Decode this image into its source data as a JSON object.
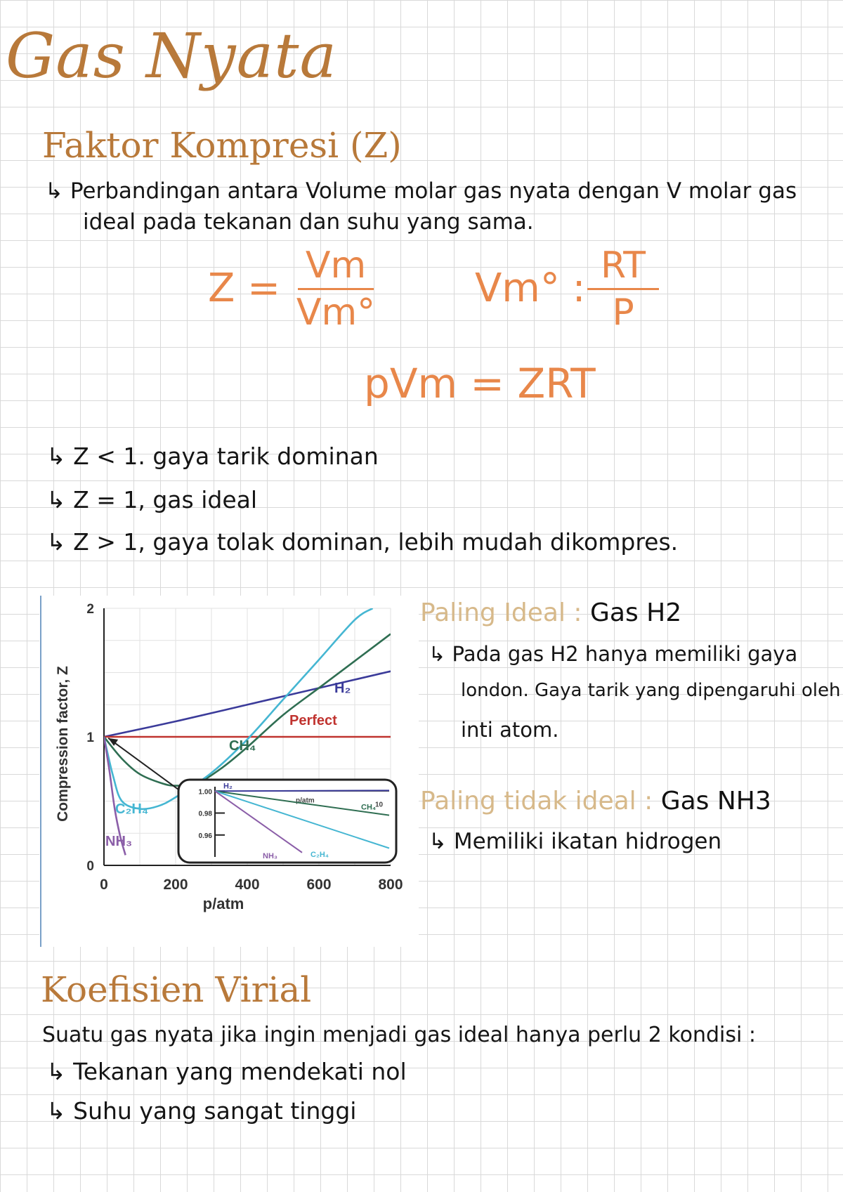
{
  "title": "Gas Nyata",
  "section1": {
    "heading": "Faktor Kompresi (Z)",
    "definition_line1": "↳ Perbandingan antara Volume molar gas nyata dengan V molar gas",
    "definition_line2": "ideal pada tekanan dan suhu yang sama.",
    "eq1": {
      "lhs": "Z =",
      "numerator": "Vm",
      "denominator": "Vm°"
    },
    "eq2": {
      "lhs": "Vm° :",
      "numerator": "RT",
      "denominator": "P"
    },
    "eq3": "pVm = ZRT",
    "cases": [
      "↳ Z < 1. gaya tarik dominan",
      "↳ Z = 1, gas ideal",
      "↳ Z > 1, gaya tolak dominan, lebih mudah dikompres."
    ]
  },
  "notes": {
    "ideal_label": "Paling Ideal :",
    "ideal_gas": "Gas H2",
    "ideal_line1": "↳ Pada gas H2 hanya memiliki gaya",
    "ideal_line2": "london. Gaya tarik yang dipengaruhi oleh",
    "ideal_line3": "inti atom.",
    "nonideal_label": "Paling tidak ideal :",
    "nonideal_gas": "Gas NH3",
    "nonideal_line1": "↳ Memiliki ikatan hidrogen"
  },
  "section2": {
    "heading": "Koefisien Virial",
    "line1": "Suatu gas nyata jika ingin menjadi gas ideal hanya perlu 2 kondisi :",
    "line2": "↳ Tekanan yang mendekati nol",
    "line3": "↳ Suhu yang sangat tinggi"
  },
  "chart_data": {
    "type": "line",
    "xlabel": "p/atm",
    "ylabel": "Compression factor, Z",
    "xlim": [
      0,
      800
    ],
    "ylim": [
      0,
      2
    ],
    "x_ticks": [
      "0",
      "200",
      "400",
      "600",
      "800"
    ],
    "y_ticks": [
      "0",
      "1",
      "2"
    ],
    "grid": true,
    "series": [
      {
        "name": "H₂",
        "color": "#3b3b9a",
        "x": [
          0,
          200,
          400,
          600,
          800
        ],
        "y": [
          1.0,
          1.12,
          1.25,
          1.38,
          1.51
        ]
      },
      {
        "name": "Perfect",
        "color": "#c0332f",
        "x": [
          0,
          800
        ],
        "y": [
          1.0,
          1.0
        ]
      },
      {
        "name": "CH₄",
        "color": "#2f6e52",
        "x": [
          0,
          50,
          100,
          160,
          200,
          260,
          330,
          400,
          500,
          600,
          700,
          800
        ],
        "y": [
          1.0,
          0.83,
          0.71,
          0.64,
          0.62,
          0.64,
          0.76,
          0.92,
          1.17,
          1.38,
          1.59,
          1.8
        ]
      },
      {
        "name": "C₂H₄",
        "color": "#45b6d2",
        "x": [
          0,
          25,
          50,
          100,
          150,
          200,
          300,
          400,
          500,
          600,
          700,
          750
        ],
        "y": [
          1.0,
          0.7,
          0.5,
          0.44,
          0.46,
          0.53,
          0.72,
          0.98,
          1.29,
          1.6,
          1.91,
          2.0
        ]
      },
      {
        "name": "NH₃",
        "color": "#8b5ea8",
        "x": [
          0,
          15,
          30,
          45,
          60
        ],
        "y": [
          1.0,
          0.74,
          0.44,
          0.23,
          0.08
        ]
      }
    ],
    "inset": {
      "xlabel": "p/atm",
      "x_max_label": "10",
      "y_ticks": [
        "1.00",
        "0.98",
        "0.96"
      ],
      "xlim": [
        0,
        10
      ],
      "ylim": [
        0.94,
        1.004
      ],
      "series": [
        {
          "name": "H₂",
          "color": "#3b3b9a",
          "x": [
            0,
            10
          ],
          "y": [
            1.0,
            1.0006
          ]
        },
        {
          "name": "CH₄",
          "color": "#2f6e52",
          "x": [
            0,
            10
          ],
          "y": [
            1.0,
            0.978
          ]
        },
        {
          "name": "C₂H₄",
          "color": "#45b6d2",
          "x": [
            0,
            10
          ],
          "y": [
            1.0,
            0.948
          ]
        },
        {
          "name": "NH₃",
          "color": "#8b5ea8",
          "x": [
            0,
            5
          ],
          "y": [
            1.0,
            0.944
          ]
        }
      ]
    }
  }
}
